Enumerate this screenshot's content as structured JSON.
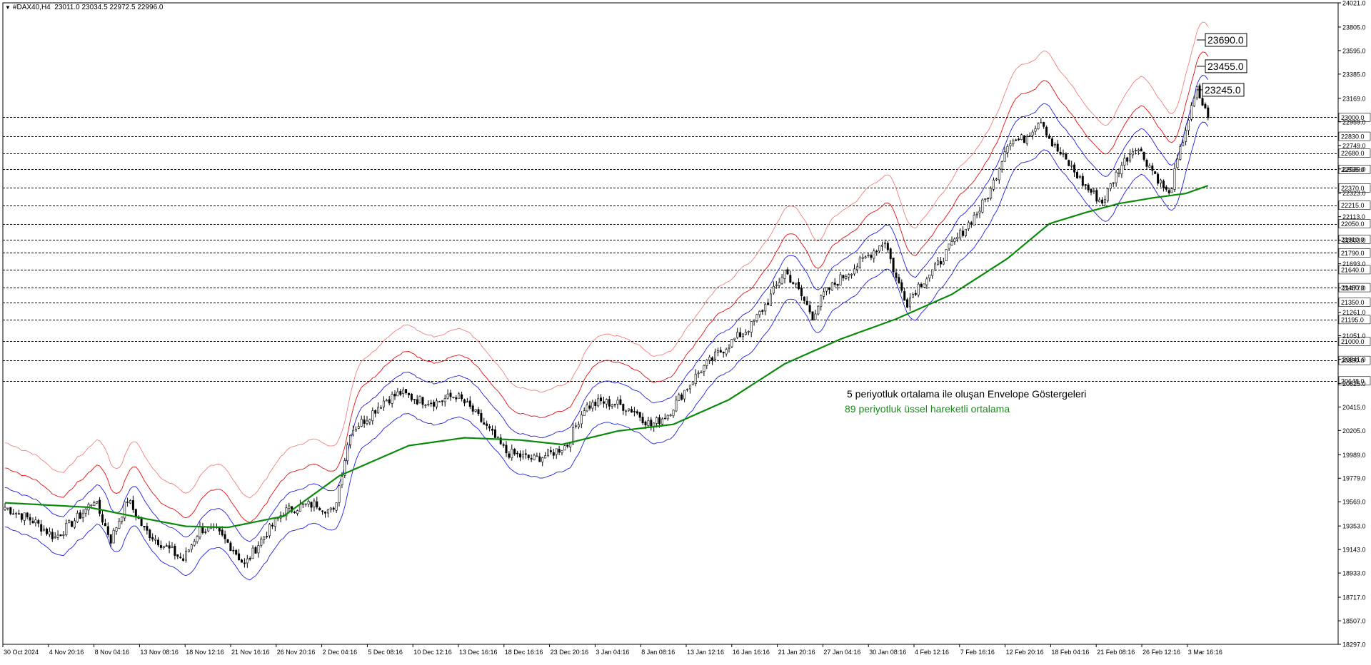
{
  "header": {
    "symbol": "#DAX40,H4",
    "ohlc": "23011.0 23034.5 22972.5 22996.0"
  },
  "annotations": {
    "line1": "5 periyotluk ortalama ile oluşan Envelope Göstergeleri",
    "line2": "89 periyotluk üssel hareketli ortalama"
  },
  "colors": {
    "candle": "#000000",
    "ema": "#0a8a0a",
    "envelope_inner": "#1f1fe0",
    "envelope_middle": "#e01010",
    "envelope_outer": "#f07070",
    "level": "#000000",
    "background": "#ffffff"
  },
  "chart_data": {
    "type": "candlestick",
    "x_ticks": [
      "30 Oct 2024",
      "4 Nov 20:16",
      "8 Nov 04:16",
      "13 Nov 08:16",
      "18 Nov 12:16",
      "21 Nov 16:16",
      "26 Nov 20:16",
      "2 Dec 04:16",
      "5 Dec 08:16",
      "10 Dec 12:16",
      "13 Dec 16:16",
      "18 Dec 16:16",
      "23 Dec 20:16",
      "3 Jan 04:16",
      "8 Jan 08:16",
      "13 Jan 12:16",
      "16 Jan 16:16",
      "21 Jan 20:16",
      "27 Jan 04:16",
      "30 Jan 08:16",
      "4 Feb 12:16",
      "7 Feb 16:16",
      "12 Feb 20:16",
      "18 Feb 04:16",
      "21 Feb 08:16",
      "26 Feb 12:16",
      "3 Mar 16:16"
    ],
    "y_ticks": [
      "24021.0",
      "23805.0",
      "23595.0",
      "23385.0",
      "23169.0",
      "22959.0",
      "22749.0",
      "22539.0",
      "22323.0",
      "22113.0",
      "21903.0",
      "21693.0",
      "21477.0",
      "21261.0",
      "21051.0",
      "20841.0",
      "20625.0",
      "20415.0",
      "20205.0",
      "19989.0",
      "19779.0",
      "19569.0",
      "19353.0",
      "19143.0",
      "18933.0",
      "18717.0",
      "18507.0",
      "18297.0"
    ],
    "ylim": [
      18297,
      24021
    ],
    "levels": [
      "23000.0",
      "22830.0",
      "22680.0",
      "22535.0",
      "22370.0",
      "22215.0",
      "22050.0",
      "21910.0",
      "21790.0",
      "21640.0",
      "21480.0",
      "21350.0",
      "21195.0",
      "21000.0",
      "20830.0",
      "20648.0"
    ],
    "level_values": [
      23000,
      22830,
      22680,
      22535,
      22370,
      22215,
      22050,
      21910,
      21790,
      21640,
      21480,
      21350,
      21195,
      21000,
      20830,
      20648
    ],
    "target_labels": [
      "23690.0",
      "23455.0",
      "23245.0"
    ],
    "target_values": [
      23690,
      23455,
      23245
    ],
    "close_path": [
      [
        0,
        19520
      ],
      [
        10,
        19400
      ],
      [
        18,
        19250
      ],
      [
        28,
        19470
      ],
      [
        32,
        19590
      ],
      [
        38,
        19230
      ],
      [
        44,
        19590
      ],
      [
        50,
        19320
      ],
      [
        58,
        19160
      ],
      [
        64,
        19050
      ],
      [
        70,
        19330
      ],
      [
        76,
        19300
      ],
      [
        82,
        19150
      ],
      [
        86,
        19000
      ],
      [
        92,
        19230
      ],
      [
        100,
        19480
      ],
      [
        106,
        19530
      ],
      [
        112,
        19550
      ],
      [
        118,
        19470
      ],
      [
        124,
        20200
      ],
      [
        130,
        20320
      ],
      [
        136,
        20470
      ],
      [
        142,
        20540
      ],
      [
        148,
        20480
      ],
      [
        155,
        20460
      ],
      [
        162,
        20520
      ],
      [
        168,
        20380
      ],
      [
        174,
        20200
      ],
      [
        180,
        20010
      ],
      [
        186,
        19970
      ],
      [
        190,
        19950
      ],
      [
        196,
        20000
      ],
      [
        202,
        20080
      ],
      [
        208,
        20410
      ],
      [
        214,
        20460
      ],
      [
        220,
        20440
      ],
      [
        226,
        20380
      ],
      [
        232,
        20250
      ],
      [
        238,
        20350
      ],
      [
        244,
        20560
      ],
      [
        250,
        20750
      ],
      [
        256,
        20890
      ],
      [
        262,
        21020
      ],
      [
        268,
        21140
      ],
      [
        274,
        21360
      ],
      [
        280,
        21630
      ],
      [
        284,
        21490
      ],
      [
        290,
        21230
      ],
      [
        294,
        21420
      ],
      [
        300,
        21560
      ],
      [
        306,
        21680
      ],
      [
        312,
        21810
      ],
      [
        316,
        21900
      ],
      [
        320,
        21560
      ],
      [
        324,
        21350
      ],
      [
        328,
        21500
      ],
      [
        334,
        21650
      ],
      [
        340,
        21860
      ],
      [
        346,
        22050
      ],
      [
        350,
        22180
      ],
      [
        354,
        22350
      ],
      [
        360,
        22780
      ],
      [
        366,
        22810
      ],
      [
        372,
        22990
      ],
      [
        376,
        22760
      ],
      [
        382,
        22580
      ],
      [
        388,
        22380
      ],
      [
        394,
        22240
      ],
      [
        400,
        22540
      ],
      [
        406,
        22750
      ],
      [
        412,
        22530
      ],
      [
        418,
        22300
      ],
      [
        424,
        22900
      ],
      [
        428,
        23240
      ],
      [
        432,
        22996
      ]
    ],
    "ema_path": [
      [
        0,
        19560
      ],
      [
        30,
        19520
      ],
      [
        50,
        19420
      ],
      [
        65,
        19350
      ],
      [
        80,
        19340
      ],
      [
        100,
        19440
      ],
      [
        120,
        19800
      ],
      [
        145,
        20070
      ],
      [
        165,
        20140
      ],
      [
        185,
        20120
      ],
      [
        200,
        20080
      ],
      [
        220,
        20200
      ],
      [
        240,
        20260
      ],
      [
        260,
        20480
      ],
      [
        280,
        20800
      ],
      [
        300,
        21020
      ],
      [
        320,
        21200
      ],
      [
        340,
        21420
      ],
      [
        360,
        21740
      ],
      [
        375,
        22050
      ],
      [
        388,
        22150
      ],
      [
        400,
        22230
      ],
      [
        412,
        22280
      ],
      [
        424,
        22320
      ],
      [
        432,
        22390
      ]
    ]
  }
}
